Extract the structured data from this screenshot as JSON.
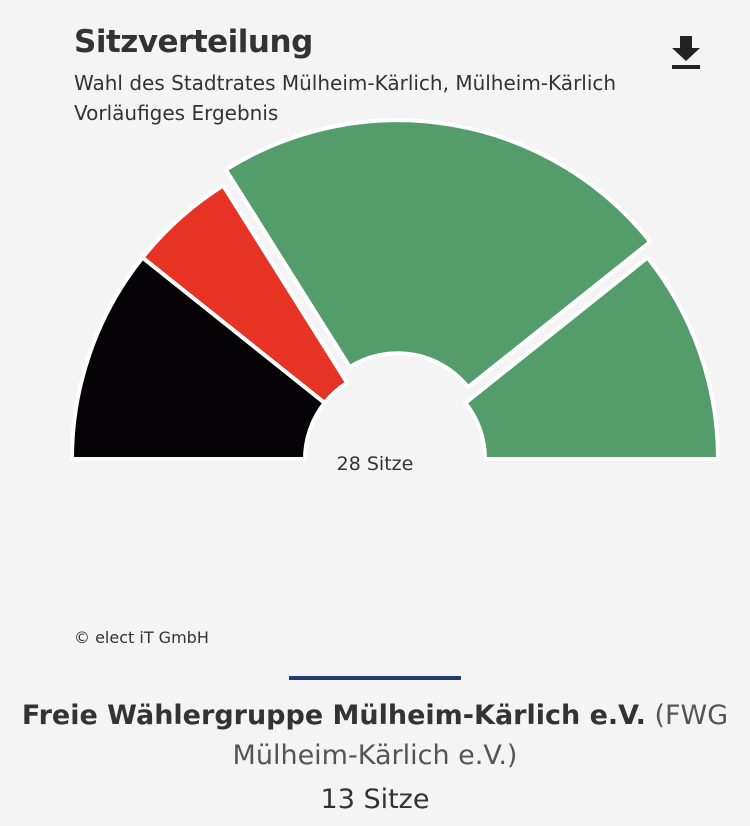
{
  "header": {
    "title": "Sitzverteilung",
    "subtitle_line1": "Wahl des Stadtrates Mülheim-Kärlich, Mülheim-Kärlich",
    "subtitle_line2": "Vorläufiges Ergebnis",
    "download_icon": "download-icon"
  },
  "chart_data": {
    "type": "pie",
    "variant": "semicircle",
    "title": "Sitzverteilung",
    "center_label": "28 Sitze",
    "total": 28,
    "slices": [
      {
        "value": 6,
        "color": "#050305"
      },
      {
        "value": 3,
        "color": "#e73324"
      },
      {
        "value": 0,
        "color": "#ffffff"
      },
      {
        "value": 13,
        "color": "#549d6b",
        "selected": true
      },
      {
        "value": 6,
        "color": "#549d6b"
      }
    ]
  },
  "credits": "© elect iT GmbH",
  "selection": {
    "party_name": "Freie Wählergruppe Mülheim-Kärlich e.V.",
    "party_abbr": "(FWG Mülheim-Kärlich e.V.)",
    "seats_label": "13 Sitze",
    "accent_color": "#1f3d6e"
  }
}
